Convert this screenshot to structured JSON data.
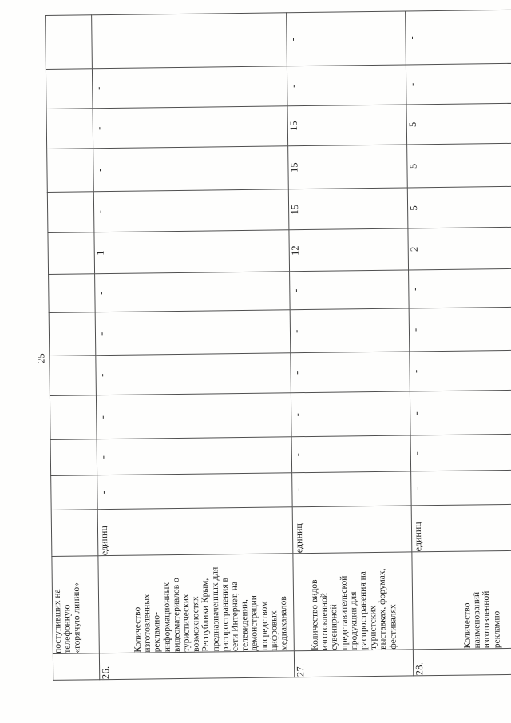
{
  "page": {
    "number": "25"
  },
  "table": {
    "rows": [
      {
        "num": "",
        "name": "поступивших на\nтелефонную\n«горячую линию»",
        "unit": "",
        "values": [
          "",
          "",
          "",
          "",
          "",
          "",
          "",
          "",
          "",
          "",
          "",
          ""
        ]
      },
      {
        "num": "26.",
        "name": "Количество\nизготовленных\nрекламно-\nинформационных\nвидеоматериалов о\nтуристических\nвозможностях\nРеспублики Крым,\nпредназначенных для\nраспространения в\nсети Интернет, на\nтелевидении,\nдемонстрации\nпосредством\nцифровых\nмедиаканалов",
        "unit": "единиц",
        "values": [
          "-",
          "-",
          "-",
          "-",
          "-",
          "-",
          "1",
          "-",
          "-",
          "-",
          "-",
          ""
        ]
      },
      {
        "num": "27.",
        "name": "Количество видов\nизготовленной\nсувенирной\nпредставительской\nпродукции для\nраспространения на\nтуристских\nвыставках, форумах,\nфестивалях",
        "unit": "единиц",
        "values": [
          "-",
          "-",
          "-",
          "-",
          "-",
          "-",
          "12",
          "15",
          "15",
          "15",
          "-",
          "-"
        ]
      },
      {
        "num": "28.",
        "name": "Количество\nнаименований\nизготовленной\nрекламно-",
        "unit": "единиц",
        "values": [
          "-",
          "-",
          "-",
          "-",
          "-",
          "-",
          "2",
          "5",
          "5",
          "5",
          "-",
          "-"
        ]
      }
    ]
  }
}
